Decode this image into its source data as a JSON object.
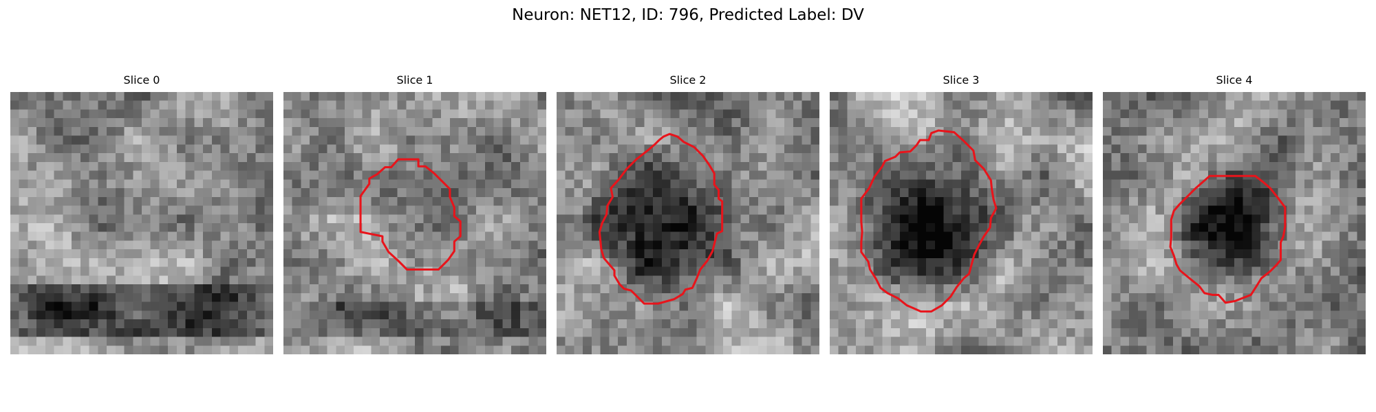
{
  "figure": {
    "suptitle": "Neuron: NET12, ID: 796, Predicted Label: DV",
    "contour_color": "#e8141b"
  },
  "slices": [
    {
      "title": "Slice 0",
      "seed": 11,
      "has_contour": false,
      "dark_blob": 0.0
    },
    {
      "title": "Slice 1",
      "seed": 23,
      "has_contour": true,
      "dark_blob": 0.35
    },
    {
      "title": "Slice 2",
      "seed": 37,
      "has_contour": true,
      "dark_blob": 0.9
    },
    {
      "title": "Slice 3",
      "seed": 41,
      "has_contour": true,
      "dark_blob": 1.0
    },
    {
      "title": "Slice 4",
      "seed": 53,
      "has_contour": true,
      "dark_blob": 0.75
    }
  ]
}
